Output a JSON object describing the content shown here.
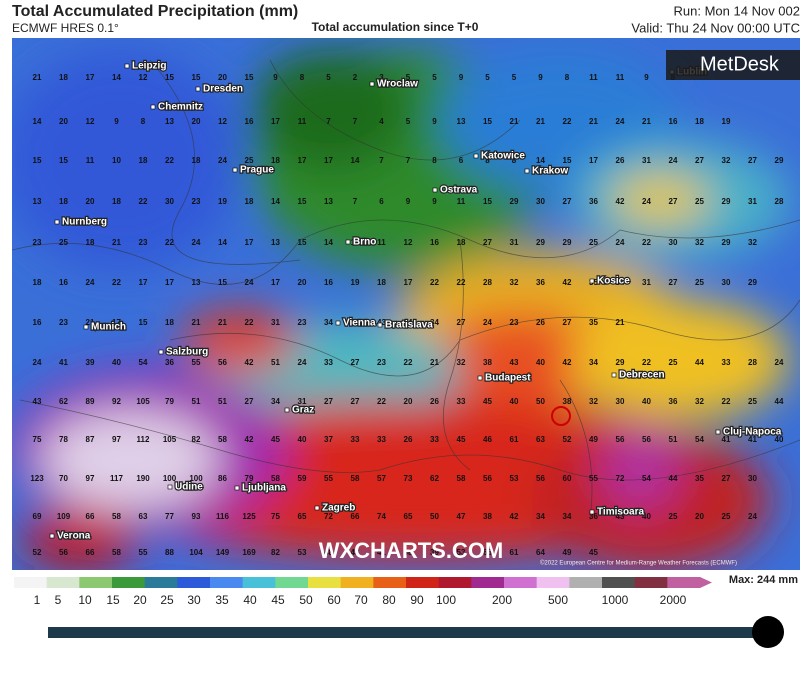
{
  "header": {
    "title": "Total Accumulated Precipitation (mm)",
    "model": "ECMWF HRES 0.1°",
    "subtitle": "Total accumulation since T+0",
    "run": "Run: Mon 14 Nov 002",
    "valid": "Valid: Thu 24 Nov 00:00 UTC"
  },
  "brand": "MetDesk",
  "watermark": "WXCHARTS.COM",
  "copyright": "©2022 European Centre for Medium-Range Weather Forecasts (ECMWF)",
  "cities": [
    "Leipzig",
    "Dresden",
    "Chemnitz",
    "Wroclaw",
    "Lublin",
    "Katowice",
    "Krakow",
    "Prague",
    "Ostrava",
    "Nurnberg",
    "Brno",
    "Kosice",
    "Munich",
    "Vienna",
    "Bratislava",
    "Salzburg",
    "Budapest",
    "Debrecen",
    "Graz",
    "Cluj-Napoca",
    "Udine",
    "Ljubljana",
    "Zagreb",
    "Timisoara",
    "Verona"
  ],
  "grid_values": [
    [
      21,
      18,
      17,
      14,
      12,
      15,
      15,
      20,
      15,
      9,
      8,
      5,
      2,
      3,
      5,
      5,
      9,
      5,
      5,
      9,
      8,
      11,
      11,
      9,
      8
    ],
    [
      14,
      20,
      12,
      9,
      8,
      13,
      20,
      12,
      16,
      17,
      11,
      7,
      7,
      4,
      5,
      9,
      13,
      15,
      21,
      21,
      22,
      21,
      24,
      21,
      16,
      18,
      19
    ],
    [
      15,
      15,
      11,
      10,
      18,
      22,
      18,
      24,
      25,
      18,
      17,
      17,
      14,
      7,
      7,
      8,
      6,
      8,
      8,
      14,
      15,
      17,
      26,
      31,
      24,
      27,
      32,
      27,
      29,
      26,
      21
    ],
    [
      13,
      18,
      20,
      18,
      22,
      30,
      23,
      19,
      18,
      14,
      15,
      13,
      7,
      6,
      9,
      9,
      11,
      15,
      29,
      30,
      27,
      36,
      42,
      24,
      27,
      25,
      29,
      31,
      28
    ],
    [
      23,
      25,
      18,
      21,
      23,
      22,
      24,
      14,
      17,
      13,
      15,
      14,
      13,
      11,
      12,
      16,
      18,
      27,
      31,
      29,
      29,
      25,
      24,
      22,
      30,
      32,
      29,
      32
    ],
    [
      18,
      16,
      24,
      22,
      17,
      17,
      13,
      15,
      24,
      17,
      20,
      16,
      19,
      18,
      17,
      22,
      22,
      28,
      32,
      36,
      42,
      35,
      34,
      31,
      27,
      25,
      30,
      29
    ],
    [
      16,
      23,
      21,
      17,
      15,
      18,
      21,
      21,
      22,
      31,
      23,
      34,
      41,
      43,
      34,
      34,
      27,
      24,
      23,
      26,
      27,
      35,
      21
    ],
    [
      24,
      41,
      39,
      40,
      54,
      36,
      55,
      56,
      42,
      51,
      24,
      33,
      27,
      23,
      22,
      21,
      32,
      38,
      43,
      40,
      42,
      34,
      29,
      22,
      25,
      44,
      33,
      28,
      24
    ],
    [
      43,
      62,
      89,
      92,
      105,
      79,
      51,
      51,
      27,
      34,
      31,
      27,
      27,
      22,
      20,
      26,
      33,
      45,
      40,
      50,
      38,
      32,
      30,
      40,
      36,
      32,
      22,
      25,
      44
    ],
    [
      75,
      78,
      87,
      97,
      112,
      105,
      82,
      58,
      42,
      45,
      40,
      37,
      33,
      33,
      26,
      33,
      45,
      46,
      61,
      63,
      52,
      49,
      56,
      56,
      51,
      54,
      41,
      41,
      40
    ],
    [
      123,
      70,
      97,
      117,
      190,
      100,
      100,
      86,
      79,
      58,
      59,
      55,
      58,
      57,
      73,
      62,
      58,
      56,
      53,
      56,
      60,
      55,
      72,
      54,
      44,
      35,
      27,
      30
    ],
    [
      69,
      109,
      66,
      58,
      63,
      77,
      93,
      116,
      125,
      75,
      65,
      72,
      66,
      74,
      65,
      50,
      47,
      38,
      42,
      34,
      34,
      36,
      43,
      40,
      25,
      20,
      25,
      24
    ],
    [
      52,
      56,
      66,
      58,
      55,
      88,
      104,
      149,
      169,
      82,
      53,
      48,
      43,
      41,
      38,
      39,
      53,
      66,
      61,
      64,
      49,
      45
    ]
  ],
  "legend": {
    "labels": [
      "1",
      "5",
      "10",
      "15",
      "20",
      "25",
      "30",
      "35",
      "40",
      "45",
      "50",
      "60",
      "70",
      "80",
      "90",
      "100",
      "200",
      "500",
      "1000",
      "2000"
    ],
    "max": "Max: 244 mm"
  }
}
